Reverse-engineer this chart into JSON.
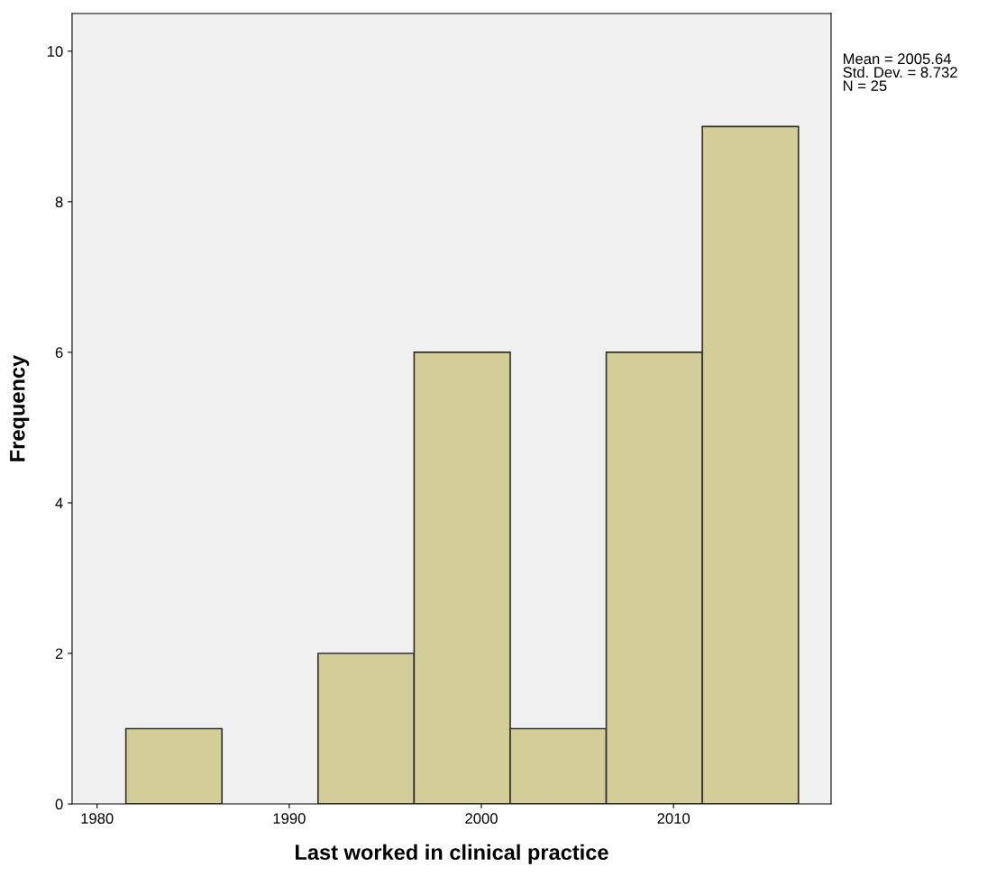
{
  "chart_data": {
    "type": "histogram",
    "xlabel": "Last worked in clinical practice",
    "ylabel": "Frequency",
    "bins": [
      1981.5,
      1986.5,
      1991.5,
      1996.5,
      2001.5,
      2006.5,
      2011.5,
      2016.5
    ],
    "values": [
      1,
      0,
      2,
      6,
      1,
      6,
      9
    ],
    "color": "#d3ce97",
    "xlim": [
      1978.7,
      2018.2
    ],
    "xticks": [
      1980,
      1990,
      2000,
      2010
    ],
    "ylim": [
      0,
      10.5
    ],
    "yticks": [
      0,
      2,
      4,
      6,
      8,
      10
    ],
    "annotations": [
      "Mean = 2005.64\nStd. Dev. = 8.732\nN = 25"
    ],
    "grid": false
  }
}
